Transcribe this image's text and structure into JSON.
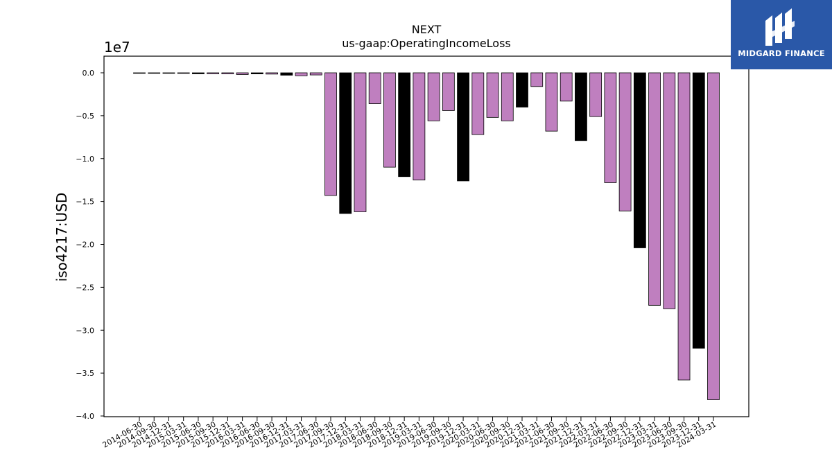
{
  "chart_data": {
    "type": "bar",
    "title": "NEXT",
    "subtitle": "us-gaap:OperatingIncomeLoss",
    "xlabel": "",
    "ylabel": "iso4217:USD",
    "y_scale_label": "1e7",
    "ylim": [
      -4.0,
      0.0
    ],
    "y_ticks": [
      "0.0",
      "−0.5",
      "−1.0",
      "−1.5",
      "−2.0",
      "−2.5",
      "−3.0",
      "−3.5",
      "−4.0"
    ],
    "y_tick_values": [
      0.0,
      -0.5,
      -1.0,
      -1.5,
      -2.0,
      -2.5,
      -3.0,
      -3.5,
      -4.0
    ],
    "categories": [
      "2014-06-30",
      "2014-09-30",
      "2014-12-31",
      "2015-03-31",
      "2015-06-30",
      "2015-09-30",
      "2015-12-31",
      "2016-03-31",
      "2016-06-30",
      "2016-09-30",
      "2016-12-31",
      "2017-03-31",
      "2017-06-30",
      "2017-09-30",
      "2017-12-31",
      "2018-03-31",
      "2018-06-30",
      "2018-09-30",
      "2018-12-31",
      "2019-03-31",
      "2019-06-30",
      "2019-09-30",
      "2019-12-31",
      "2020-03-31",
      "2020-06-30",
      "2020-09-30",
      "2020-12-31",
      "2021-03-31",
      "2021-06-30",
      "2021-09-30",
      "2021-12-31",
      "2022-03-31",
      "2022-06-30",
      "2022-09-30",
      "2022-12-31",
      "2023-03-31",
      "2023-06-30",
      "2023-09-30",
      "2023-12-31",
      "2024-03-31"
    ],
    "values": [
      -0.003,
      -0.005,
      -0.006,
      -0.007,
      -0.012,
      -0.012,
      -0.013,
      -0.02,
      -0.013,
      -0.015,
      -0.028,
      -0.035,
      -0.025,
      -1.43,
      -1.64,
      -1.62,
      -0.36,
      -1.1,
      -1.21,
      -1.25,
      -0.56,
      -0.44,
      -1.26,
      -0.72,
      -0.52,
      -0.56,
      -0.4,
      -0.16,
      -0.68,
      -0.33,
      -0.79,
      -0.51,
      -1.28,
      -1.61,
      -2.04,
      -2.71,
      -2.75,
      -3.58,
      -3.21,
      -3.81
    ],
    "bar_colors": [
      "#000000",
      "#bf7fbf",
      "#bf7fbf",
      "#bf7fbf",
      "#000000",
      "#bf7fbf",
      "#bf7fbf",
      "#bf7fbf",
      "#000000",
      "#bf7fbf",
      "#000000",
      "#bf7fbf",
      "#bf7fbf",
      "#bf7fbf",
      "#000000",
      "#bf7fbf",
      "#bf7fbf",
      "#bf7fbf",
      "#000000",
      "#bf7fbf",
      "#bf7fbf",
      "#bf7fbf",
      "#000000",
      "#bf7fbf",
      "#bf7fbf",
      "#bf7fbf",
      "#000000",
      "#bf7fbf",
      "#bf7fbf",
      "#bf7fbf",
      "#000000",
      "#bf7fbf",
      "#bf7fbf",
      "#bf7fbf",
      "#000000",
      "#bf7fbf",
      "#bf7fbf",
      "#bf7fbf",
      "#000000",
      "#bf7fbf"
    ],
    "grid": false,
    "legend": "none"
  },
  "logo": {
    "text": "MIDGARD FINANCE",
    "background": "#2a58a8",
    "icon": "midgard-finance-logo-icon"
  }
}
